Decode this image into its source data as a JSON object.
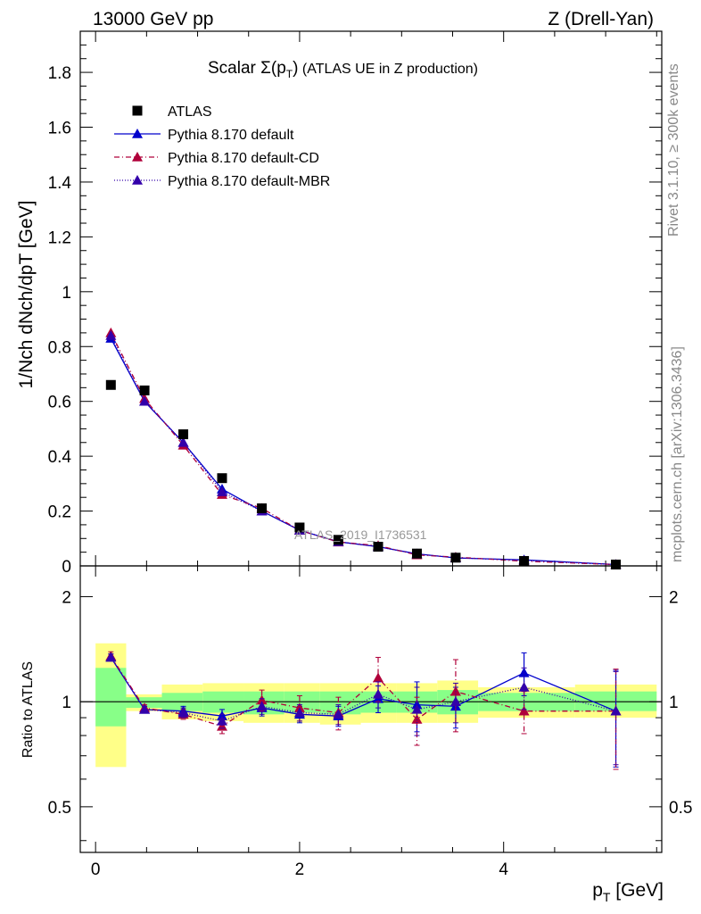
{
  "header": {
    "energy": "13000 GeV pp",
    "process": "Z (Drell-Yan)"
  },
  "side": {
    "rivet": "Rivet 3.1.10, ≥ 300k events",
    "mcplots": "mcplots.cern.ch [arXiv:1306.3436]"
  },
  "chart_data": {
    "type": "line",
    "title": "Scalar Σ(pT) (ATLAS UE in Z production)",
    "title_parts": {
      "prefix": "Scalar ",
      "sigma": "Σ(p",
      "sub": "T",
      "close": ")",
      "suffix": " (ATLAS UE in Z production)"
    },
    "watermark": "ATLAS_2019_I1736531",
    "xlabel": "pT [GeV]",
    "xlabel_parts": {
      "main": "p",
      "sub": "T",
      "unit": " [GeV]"
    },
    "ylabel": "1/Nch dNch/dpT [GeV]",
    "ratio_ylabel": "Ratio to ATLAS",
    "xlim": [
      -0.15,
      5.55
    ],
    "ylim": [
      0,
      1.95
    ],
    "ratio_ylim": [
      0.37,
      2.45
    ],
    "x_ticks": [
      "0",
      "2",
      "4"
    ],
    "x_tick_values": [
      0,
      2,
      4
    ],
    "y_ticks": [
      "0",
      "0.2",
      "0.4",
      "0.6",
      "0.8",
      "1",
      "1.2",
      "1.4",
      "1.6",
      "1.8"
    ],
    "y_tick_values": [
      0,
      0.2,
      0.4,
      0.6,
      0.8,
      1.0,
      1.2,
      1.4,
      1.6,
      1.8
    ],
    "ratio_ticks": [
      "0.5",
      "1",
      "2"
    ],
    "ratio_tick_values": [
      0.5,
      1,
      2
    ],
    "bins": [
      [
        0.0,
        0.3
      ],
      [
        0.3,
        0.65
      ],
      [
        0.65,
        1.05
      ],
      [
        1.05,
        1.45
      ],
      [
        1.45,
        1.85
      ],
      [
        1.85,
        2.2
      ],
      [
        2.2,
        2.6
      ],
      [
        2.6,
        2.95
      ],
      [
        2.95,
        3.35
      ],
      [
        3.35,
        3.75
      ],
      [
        3.75,
        4.7
      ],
      [
        4.7,
        5.5
      ]
    ],
    "x": [
      0.15,
      0.48,
      0.86,
      1.24,
      1.63,
      2.0,
      2.38,
      2.77,
      3.15,
      3.53,
      4.2,
      5.1
    ],
    "series": [
      {
        "name": "ATLAS",
        "color": "#000000",
        "marker": "square",
        "values": [
          0.66,
          0.64,
          0.48,
          0.32,
          0.21,
          0.14,
          0.095,
          0.07,
          0.045,
          0.03,
          0.018,
          0.005
        ],
        "band_yellow": [
          [
            0.65,
            1.47
          ],
          [
            0.94,
            1.05
          ],
          [
            0.89,
            1.12
          ],
          [
            0.88,
            1.13
          ],
          [
            0.87,
            1.13
          ],
          [
            0.87,
            1.13
          ],
          [
            0.86,
            1.13
          ],
          [
            0.87,
            1.13
          ],
          [
            0.87,
            1.13
          ],
          [
            0.87,
            1.15
          ],
          [
            0.9,
            1.1
          ],
          [
            0.9,
            1.12
          ]
        ],
        "band_green": [
          [
            0.85,
            1.25
          ],
          [
            0.96,
            1.03
          ],
          [
            0.94,
            1.06
          ],
          [
            0.93,
            1.07
          ],
          [
            0.92,
            1.07
          ],
          [
            0.93,
            1.07
          ],
          [
            0.92,
            1.07
          ],
          [
            0.93,
            1.07
          ],
          [
            0.93,
            1.07
          ],
          [
            0.92,
            1.08
          ],
          [
            0.94,
            1.06
          ],
          [
            0.94,
            1.07
          ]
        ]
      },
      {
        "name": "Pythia 8.170 default",
        "color": "#0000cc",
        "marker": "triangle",
        "dash": "",
        "values": [
          0.83,
          0.6,
          0.45,
          0.28,
          0.2,
          0.13,
          0.088,
          0.07,
          0.044,
          0.029,
          0.022,
          0.005
        ],
        "ratio": [
          1.34,
          0.95,
          0.94,
          0.91,
          0.96,
          0.92,
          0.91,
          1.02,
          0.98,
          0.97,
          1.21,
          0.94
        ],
        "ratio_err": [
          0.03,
          0.02,
          0.03,
          0.04,
          0.05,
          0.05,
          0.06,
          0.09,
          0.16,
          0.13,
          0.17,
          0.29
        ]
      },
      {
        "name": "Pythia 8.170 default-CD",
        "color": "#b0003a",
        "marker": "triangle",
        "dash": "6,3,1,3",
        "values": [
          0.85,
          0.61,
          0.44,
          0.26,
          0.21,
          0.13,
          0.087,
          0.074,
          0.04,
          0.032,
          0.017,
          0.005
        ],
        "ratio": [
          1.35,
          0.96,
          0.92,
          0.85,
          1.01,
          0.96,
          0.93,
          1.17,
          0.89,
          1.07,
          0.94,
          0.94
        ],
        "ratio_err": [
          0.04,
          0.02,
          0.03,
          0.04,
          0.07,
          0.08,
          0.1,
          0.17,
          0.14,
          0.25,
          0.13,
          0.3
        ]
      },
      {
        "name": "Pythia 8.170 default-MBR",
        "color": "#3300aa",
        "marker": "triangle",
        "dash": "1,2",
        "values": [
          0.84,
          0.6,
          0.45,
          0.27,
          0.2,
          0.13,
          0.088,
          0.07,
          0.043,
          0.03,
          0.02,
          0.005
        ],
        "ratio": [
          1.34,
          0.95,
          0.93,
          0.88,
          0.97,
          0.93,
          0.92,
          1.05,
          0.95,
          1.0,
          1.1,
          0.94
        ],
        "ratio_err": [
          0.03,
          0.02,
          0.03,
          0.04,
          0.05,
          0.05,
          0.06,
          0.09,
          0.15,
          0.13,
          0.15,
          0.28
        ]
      }
    ],
    "legend_position": "top-left"
  }
}
